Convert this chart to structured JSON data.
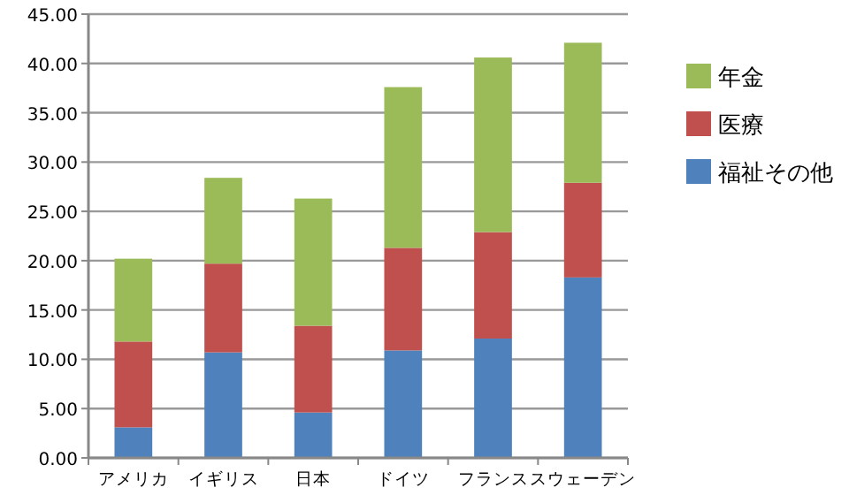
{
  "chart_data": {
    "type": "bar",
    "stacked": true,
    "categories": [
      "アメリカ",
      "イギリス",
      "日本",
      "ドイツ",
      "フランス",
      "スウェーデン"
    ],
    "series": [
      {
        "name": "福祉その他",
        "color": "#4f81bd",
        "values": [
          3.1,
          10.7,
          4.6,
          10.9,
          12.1,
          18.3
        ]
      },
      {
        "name": "医療",
        "color": "#c0504d",
        "values": [
          8.7,
          9.0,
          8.8,
          10.4,
          10.8,
          9.6
        ]
      },
      {
        "name": "年金",
        "color": "#9bbb59",
        "values": [
          8.4,
          8.7,
          12.9,
          16.3,
          17.7,
          14.2
        ]
      }
    ],
    "ylim": [
      0,
      45
    ],
    "yticks": [
      {
        "value": 0,
        "label": "0.00"
      },
      {
        "value": 5,
        "label": "5.00"
      },
      {
        "value": 10,
        "label": "10.00"
      },
      {
        "value": 15,
        "label": "15.00"
      },
      {
        "value": 20,
        "label": "20.00"
      },
      {
        "value": 25,
        "label": "25.00"
      },
      {
        "value": 30,
        "label": "30.00"
      },
      {
        "value": 35,
        "label": "35.00"
      },
      {
        "value": 40,
        "label": "40.00"
      },
      {
        "value": 45,
        "label": "45.00"
      }
    ],
    "grid": "y",
    "legend": "right"
  }
}
